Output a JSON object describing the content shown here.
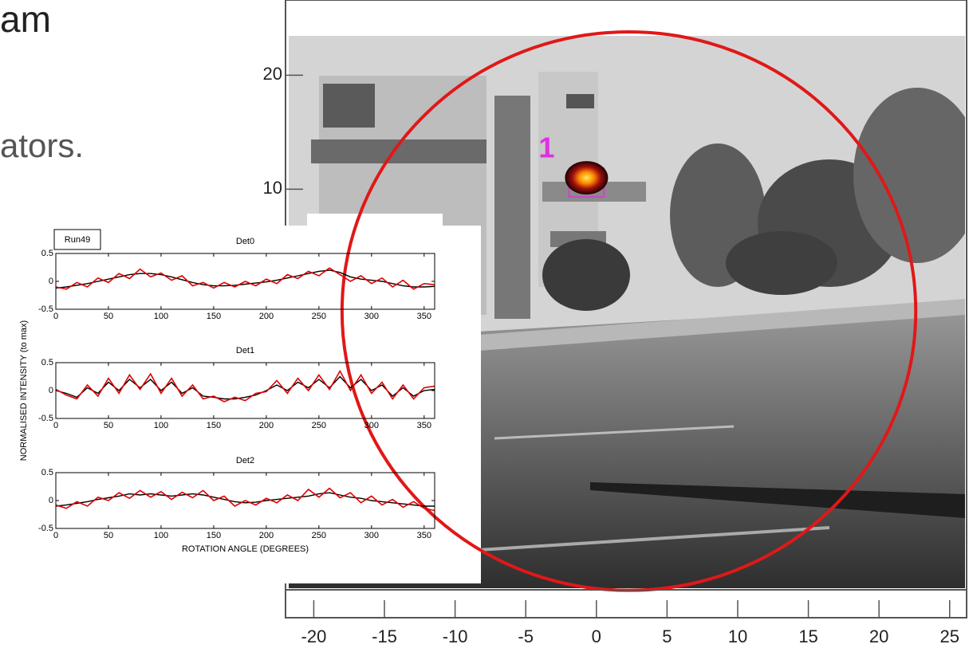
{
  "slide": {
    "fragments": [
      "am",
      "ators."
    ]
  },
  "chart_data": [
    {
      "type": "image",
      "xlim": [
        -22,
        26.2
      ],
      "ylim": [
        -27.6,
        26.6
      ],
      "xticks": [
        -20,
        -15,
        -10,
        -5,
        0,
        5,
        10,
        15,
        20,
        25
      ],
      "yticks": [
        10,
        20
      ],
      "fov": {
        "cx": 2.3,
        "cy": -0.7,
        "rx": 20.3,
        "ry": 24.5,
        "color": "#e01818"
      },
      "sources": [
        {
          "label": "1",
          "x": -0.7,
          "y": 11,
          "color": "#e030e0"
        }
      ]
    },
    {
      "type": "line",
      "title": "Det0",
      "annotation": "Run49",
      "xlim": [
        0,
        360
      ],
      "ylim": [
        -0.5,
        0.5
      ],
      "xticks": [
        0,
        50,
        100,
        150,
        200,
        250,
        300,
        350
      ],
      "yticks": [
        0.5,
        0,
        -0.5
      ],
      "x": [
        0,
        10,
        20,
        30,
        40,
        50,
        60,
        70,
        80,
        90,
        100,
        110,
        120,
        130,
        140,
        150,
        160,
        170,
        180,
        190,
        200,
        210,
        220,
        230,
        240,
        250,
        260,
        270,
        280,
        290,
        300,
        310,
        320,
        330,
        340,
        350,
        360
      ],
      "series": [
        {
          "color": "#000000",
          "values": [
            -0.12,
            -0.1,
            -0.07,
            -0.04,
            0,
            0.04,
            0.08,
            0.12,
            0.14,
            0.14,
            0.12,
            0.08,
            0.03,
            -0.02,
            -0.06,
            -0.08,
            -0.08,
            -0.07,
            -0.05,
            -0.03,
            -0.01,
            0.02,
            0.06,
            0.1,
            0.14,
            0.18,
            0.2,
            0.16,
            0.08,
            0.04,
            0.02,
            0,
            -0.04,
            -0.08,
            -0.1,
            -0.1,
            -0.09
          ]
        },
        {
          "color": "#e00000",
          "values": [
            -0.1,
            -0.14,
            -0.02,
            -0.1,
            0.06,
            -0.02,
            0.14,
            0.05,
            0.22,
            0.08,
            0.15,
            0.02,
            0.1,
            -0.08,
            -0.02,
            -0.12,
            -0.02,
            -0.1,
            0,
            -0.08,
            0.04,
            -0.04,
            0.12,
            0.05,
            0.18,
            0.1,
            0.24,
            0.12,
            0,
            0.1,
            -0.04,
            0.06,
            -0.1,
            0.02,
            -0.14,
            -0.04,
            -0.06
          ]
        }
      ]
    },
    {
      "type": "line",
      "title": "Det1",
      "ylabel": "NORMALISED INTENSITY (to max)",
      "xlim": [
        0,
        360
      ],
      "ylim": [
        -0.5,
        0.5
      ],
      "xticks": [
        0,
        50,
        100,
        150,
        200,
        250,
        300,
        350
      ],
      "yticks": [
        0.5,
        0,
        -0.5
      ],
      "x": [
        0,
        10,
        20,
        30,
        40,
        50,
        60,
        70,
        80,
        90,
        100,
        110,
        120,
        130,
        140,
        150,
        160,
        170,
        180,
        190,
        200,
        210,
        220,
        230,
        240,
        250,
        260,
        270,
        280,
        290,
        300,
        310,
        320,
        330,
        340,
        350,
        360
      ],
      "series": [
        {
          "color": "#000000",
          "values": [
            0,
            -0.05,
            -0.12,
            0.05,
            -0.05,
            0.15,
            0,
            0.2,
            0.05,
            0.2,
            0,
            0.15,
            -0.05,
            0.05,
            -0.1,
            -0.12,
            -0.15,
            -0.15,
            -0.12,
            -0.08,
            0,
            0.1,
            0,
            0.15,
            0.05,
            0.2,
            0.05,
            0.25,
            0.05,
            0.2,
            0,
            0.1,
            -0.1,
            0.05,
            -0.1,
            0,
            0.02
          ]
        },
        {
          "color": "#e00000",
          "values": [
            0.02,
            -0.08,
            -0.15,
            0.1,
            -0.1,
            0.22,
            -0.05,
            0.28,
            0.02,
            0.3,
            -0.05,
            0.22,
            -0.1,
            0.1,
            -0.15,
            -0.1,
            -0.2,
            -0.12,
            -0.18,
            -0.05,
            -0.02,
            0.18,
            -0.05,
            0.22,
            0,
            0.28,
            0.02,
            0.35,
            0,
            0.28,
            -0.05,
            0.15,
            -0.15,
            0.1,
            -0.15,
            0.05,
            0.08
          ]
        }
      ]
    },
    {
      "type": "line",
      "title": "Det2",
      "xlabel": "ROTATION ANGLE (DEGREES)",
      "xlim": [
        0,
        360
      ],
      "ylim": [
        -0.5,
        0.5
      ],
      "xticks": [
        0,
        50,
        100,
        150,
        200,
        250,
        300,
        350
      ],
      "yticks": [
        0.5,
        0,
        -0.5
      ],
      "x": [
        0,
        10,
        20,
        30,
        40,
        50,
        60,
        70,
        80,
        90,
        100,
        110,
        120,
        130,
        140,
        150,
        160,
        170,
        180,
        190,
        200,
        210,
        220,
        230,
        240,
        250,
        260,
        270,
        280,
        290,
        300,
        310,
        320,
        330,
        340,
        350,
        360
      ],
      "series": [
        {
          "color": "#000000",
          "values": [
            -0.1,
            -0.08,
            -0.05,
            -0.02,
            0.02,
            0.05,
            0.08,
            0.12,
            0.1,
            0.12,
            0.1,
            0.08,
            0.1,
            0.12,
            0.1,
            0.06,
            0.02,
            -0.02,
            -0.04,
            -0.03,
            0,
            0.02,
            0.04,
            0.06,
            0.08,
            0.12,
            0.14,
            0.1,
            0.06,
            0.04,
            0,
            -0.02,
            -0.04,
            -0.06,
            -0.08,
            -0.1,
            -0.1
          ]
        },
        {
          "color": "#e00000",
          "values": [
            -0.08,
            -0.14,
            -0.02,
            -0.1,
            0.06,
            0,
            0.14,
            0.04,
            0.18,
            0.06,
            0.16,
            0.02,
            0.15,
            0.05,
            0.18,
            0,
            0.08,
            -0.1,
            0,
            -0.08,
            0.04,
            -0.04,
            0.1,
            0,
            0.2,
            0.06,
            0.22,
            0.05,
            0.14,
            -0.04,
            0.08,
            -0.08,
            0.02,
            -0.12,
            -0.02,
            -0.14,
            -0.18
          ]
        }
      ]
    }
  ]
}
